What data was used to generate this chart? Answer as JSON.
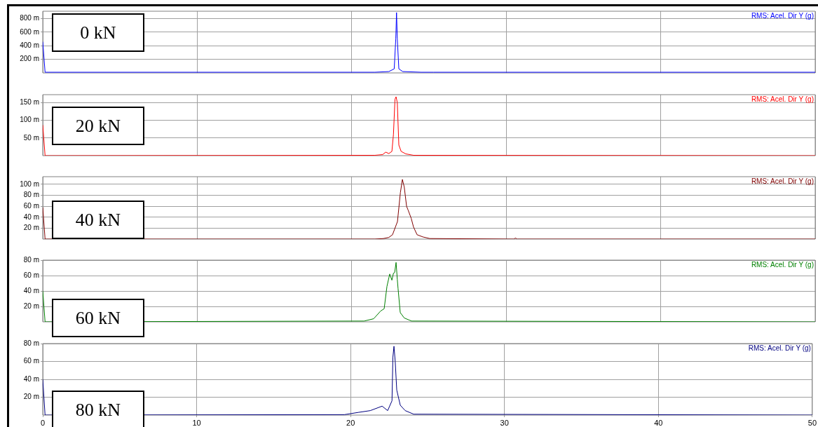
{
  "chart_data": [
    {
      "type": "line",
      "annotations": [
        "0 kN"
      ],
      "legend": "top right",
      "grid": true,
      "tick_labels": "y",
      "xlim": [
        0,
        50
      ],
      "xticks": [
        0,
        10,
        20,
        30,
        40,
        50
      ],
      "ylim": [
        0,
        910
      ],
      "yticks": [
        {
          "value": 200,
          "label": "200 m"
        },
        {
          "value": 400,
          "label": "400 m"
        },
        {
          "value": 600,
          "label": "600 m"
        },
        {
          "value": 800,
          "label": "800 m"
        }
      ],
      "series": [
        {
          "name": "RMS: Acel. Dir Y (g)",
          "color": "#0000ff",
          "x": [
            0,
            0.15,
            20,
            21.5,
            22.4,
            22.75,
            22.85,
            22.9,
            22.95,
            23.05,
            23.3,
            24.5,
            25.3,
            50
          ],
          "values": [
            460,
            10,
            10,
            10,
            20,
            60,
            500,
            890,
            500,
            60,
            20,
            10,
            10,
            10
          ]
        }
      ]
    },
    {
      "type": "line",
      "annotations": [
        "20 kN"
      ],
      "legend": "top right",
      "grid": true,
      "tick_labels": "y",
      "xlim": [
        0,
        50
      ],
      "xticks": [
        0,
        10,
        20,
        30,
        40,
        50
      ],
      "ylim": [
        0,
        173
      ],
      "yticks": [
        {
          "value": 50,
          "label": "50 m"
        },
        {
          "value": 100,
          "label": "100 m"
        },
        {
          "value": 150,
          "label": "150 m"
        }
      ],
      "series": [
        {
          "name": "RMS: Acel. Dir Y (g)",
          "color": "#ff0000",
          "x": [
            0,
            0.15,
            21.5,
            22.0,
            22.2,
            22.4,
            22.6,
            22.7,
            22.8,
            22.87,
            22.95,
            23.05,
            23.2,
            23.5,
            24.0,
            50
          ],
          "values": [
            87,
            0,
            1,
            3,
            10,
            6,
            12,
            60,
            160,
            167,
            150,
            30,
            12,
            5,
            1,
            0
          ]
        }
      ]
    },
    {
      "type": "line",
      "annotations": [
        "40 kN"
      ],
      "legend": "top right",
      "grid": true,
      "tick_labels": "y",
      "xlim": [
        0,
        50
      ],
      "xticks": [
        0,
        10,
        20,
        30,
        40,
        50
      ],
      "ylim": [
        0,
        114
      ],
      "yticks": [
        {
          "value": 20,
          "label": "20 m"
        },
        {
          "value": 40,
          "label": "40 m"
        },
        {
          "value": 60,
          "label": "60 m"
        },
        {
          "value": 80,
          "label": "80 m"
        },
        {
          "value": 100,
          "label": "100 m"
        }
      ],
      "series": [
        {
          "name": "RMS: Acel. Dir Y (g)",
          "color": "#800000",
          "x": [
            0,
            0.15,
            21.5,
            22.05,
            22.4,
            22.64,
            22.96,
            23.15,
            23.28,
            23.4,
            23.55,
            23.65,
            23.85,
            24.0,
            24.23,
            24.6,
            25.05,
            30.5,
            30.6,
            30.7,
            50
          ],
          "values": [
            58,
            0,
            0,
            1,
            3,
            8,
            32,
            85,
            109,
            95,
            60,
            53,
            38,
            22,
            8,
            4,
            1,
            0,
            2,
            0,
            0
          ]
        }
      ]
    },
    {
      "type": "line",
      "annotations": [
        "60 kN"
      ],
      "legend": "top right",
      "grid": true,
      "tick_labels": "y",
      "xlim": [
        0,
        50
      ],
      "xticks": [
        0,
        10,
        20,
        30,
        40,
        50
      ],
      "ylim": [
        0,
        80
      ],
      "yticks": [
        {
          "value": 20,
          "label": "20 m"
        },
        {
          "value": 40,
          "label": "40 m"
        },
        {
          "value": 60,
          "label": "60 m"
        },
        {
          "value": 80,
          "label": "80 m"
        }
      ],
      "series": [
        {
          "name": "RMS: Acel. Dir Y (g)",
          "color": "#008000",
          "x": [
            0,
            0.15,
            20.8,
            21.42,
            21.87,
            22.1,
            22.28,
            22.46,
            22.6,
            22.7,
            22.78,
            22.87,
            22.95,
            23.0,
            23.14,
            23.4,
            23.87,
            50
          ],
          "values": [
            40,
            0,
            1,
            4,
            14,
            17,
            46,
            62,
            54,
            63,
            64,
            77,
            55,
            43,
            12,
            5,
            1,
            0
          ]
        }
      ]
    },
    {
      "type": "line",
      "annotations": [
        "80 kN"
      ],
      "legend": "top right",
      "grid": true,
      "xlim": [
        0,
        50
      ],
      "xticks": [
        0,
        10,
        20,
        30,
        40,
        50
      ],
      "ylim": [
        0,
        80
      ],
      "yticks": [
        {
          "value": 20,
          "label": "20 m"
        },
        {
          "value": 40,
          "label": "40 m"
        },
        {
          "value": 60,
          "label": "60 m"
        },
        {
          "value": 80,
          "label": "80 m"
        }
      ],
      "series": [
        {
          "name": "RMS: Acel. Dir Y (g)",
          "color": "#000080",
          "x": [
            0,
            0.15,
            19.6,
            20.5,
            21.28,
            22.05,
            22.41,
            22.69,
            22.75,
            22.82,
            22.9,
            23.0,
            23.23,
            23.55,
            24.1,
            50
          ],
          "values": [
            40,
            0,
            0.5,
            3,
            5,
            10,
            5,
            16,
            65,
            77,
            60,
            28,
            11,
            5,
            1,
            0
          ]
        }
      ]
    }
  ]
}
